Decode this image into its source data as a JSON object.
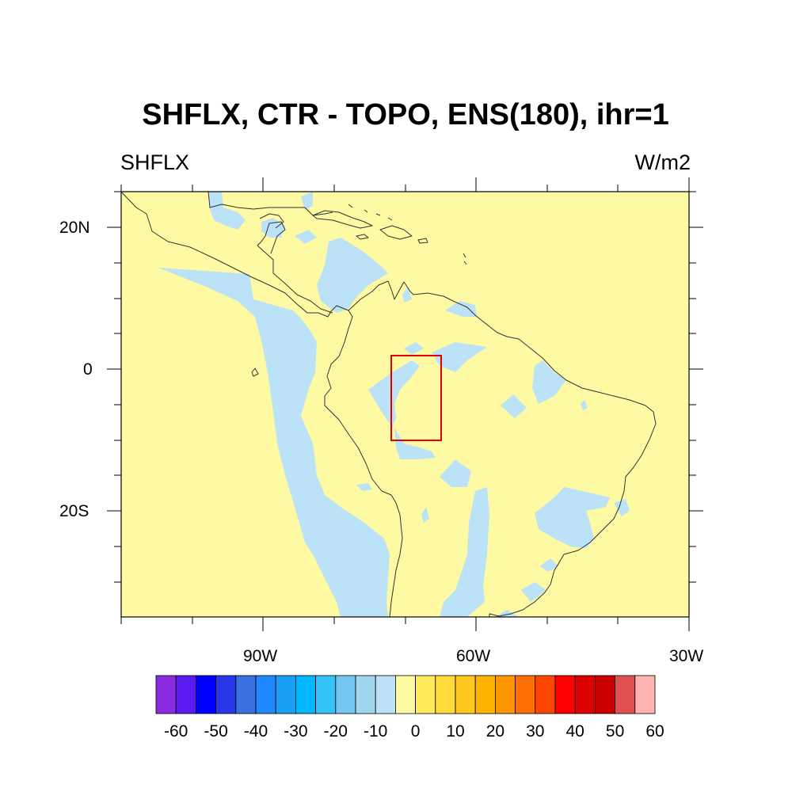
{
  "title": "SHFLX, CTR - TOPO, ENS(180), ihr=1",
  "left_subtitle": "SHFLX",
  "right_subtitle": "W/m2",
  "colors": {
    "land_positive": "#FEFAA4",
    "negative_fill": "#BBE2F6",
    "coastline": "#333333",
    "box": "#E00000"
  },
  "chart_data": {
    "type": "heatmap",
    "projection": "cylindrical equidistant",
    "lon_range": [
      -110,
      -30
    ],
    "lat_range": [
      -35,
      25
    ],
    "x_ticks": [
      {
        "lon": -90,
        "label": "90W"
      },
      {
        "lon": -60,
        "label": "60W"
      },
      {
        "lon": -30,
        "label": "30W"
      }
    ],
    "y_ticks": [
      {
        "lat": 20,
        "label": "20N"
      },
      {
        "lat": 0,
        "label": "0"
      },
      {
        "lat": -20,
        "label": "20S"
      }
    ],
    "region_box": {
      "lon_min": -73,
      "lon_max": -66,
      "lat_min": -10,
      "lat_max": 2
    },
    "colorbar": {
      "colors": [
        "#8A2BE2",
        "#5A1AF0",
        "#0000FF",
        "#2838E8",
        "#3A70E0",
        "#2088FF",
        "#18A0F5",
        "#00B6FF",
        "#34C3F6",
        "#74C5EF",
        "#A0D6F0",
        "#BBE2F6",
        "#FEFAA4",
        "#FFEB5A",
        "#FFDC3C",
        "#FFC81E",
        "#FFB400",
        "#FF9600",
        "#FF6E00",
        "#FF4600",
        "#FF0000",
        "#DC0000",
        "#C80000",
        "#E15050",
        "#FFB4B4"
      ],
      "labels": [
        "-60",
        "-50",
        "-40",
        "-30",
        "-20",
        "-10",
        "0",
        "10",
        "20",
        "30",
        "40",
        "50",
        "60"
      ]
    }
  }
}
